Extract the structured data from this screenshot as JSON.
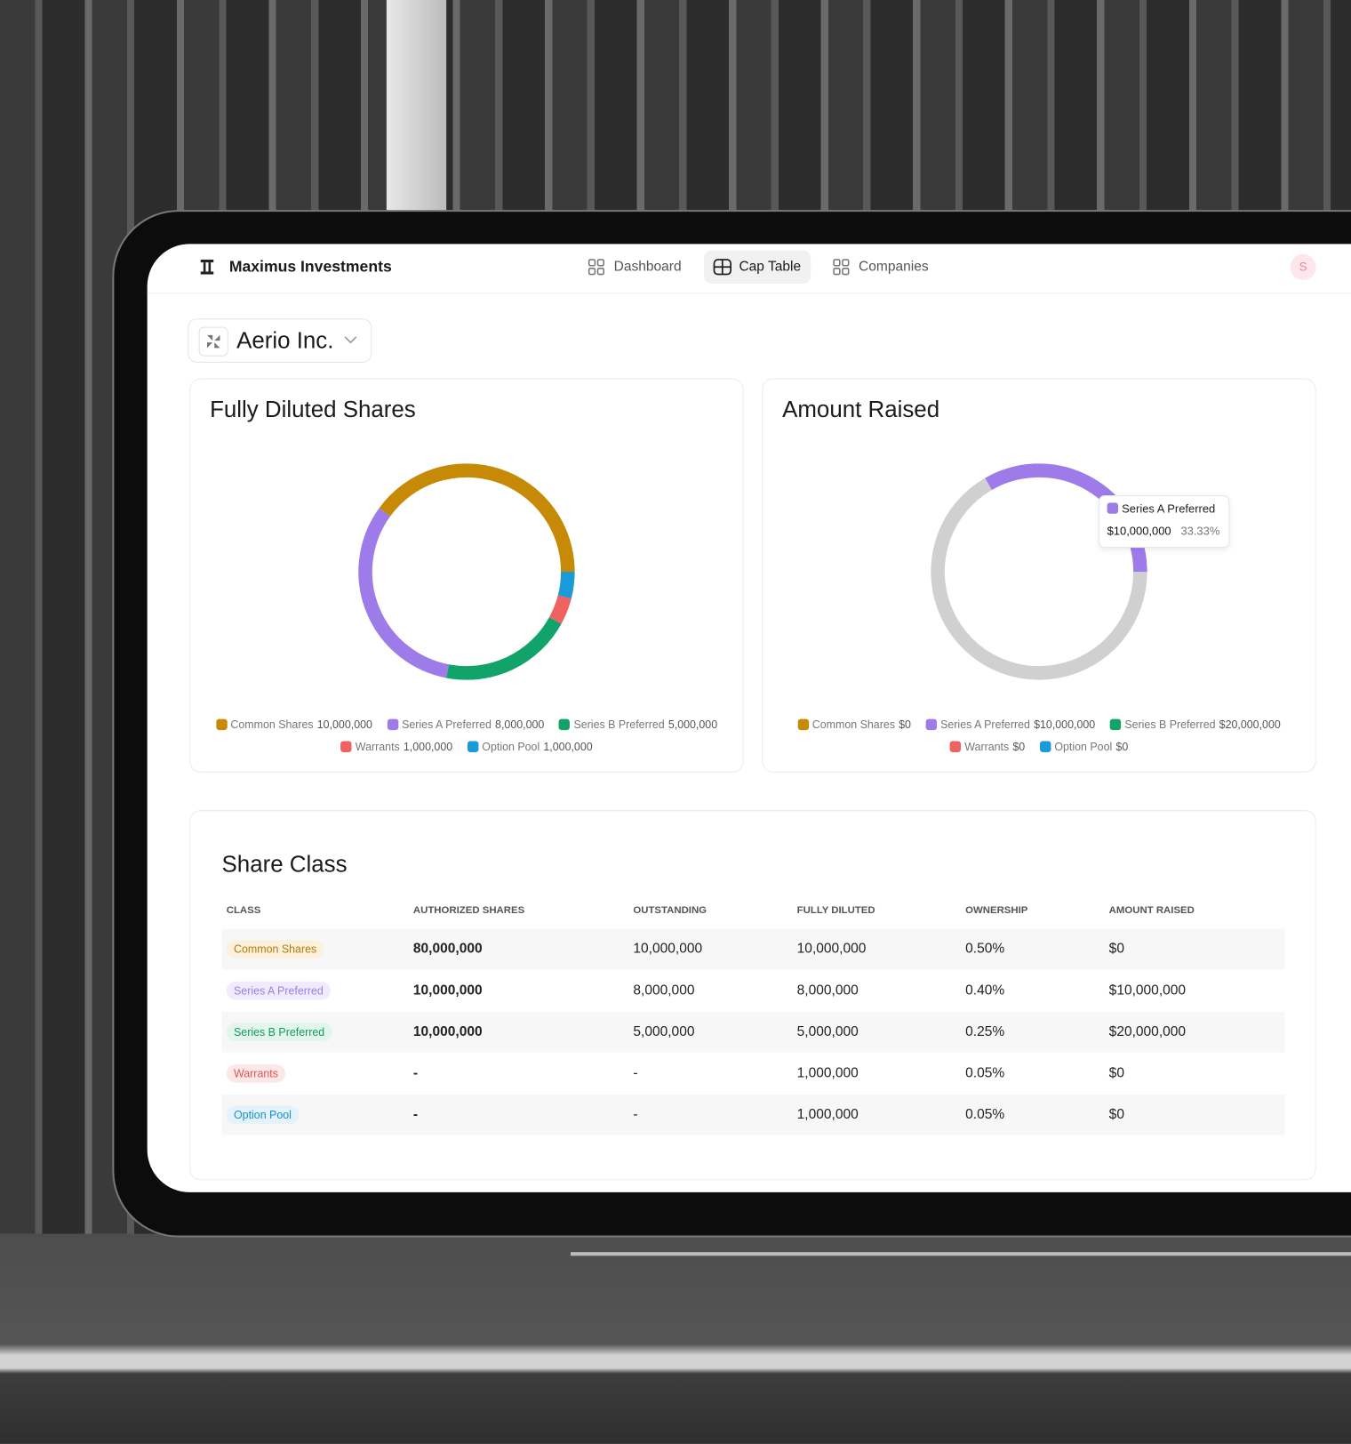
{
  "header": {
    "brand": "Maximus Investments",
    "nav": [
      "Dashboard",
      "Cap Table",
      "Companies"
    ],
    "avatar": "S"
  },
  "company": "Aerio Inc.",
  "chart_data": [
    {
      "type": "donut",
      "title": "Fully Diluted Shares",
      "categories": [
        "Common Shares",
        "Series A Preferred",
        "Series B Preferred",
        "Warrants",
        "Option Pool"
      ],
      "values": [
        10000000,
        8000000,
        5000000,
        1000000,
        1000000
      ],
      "value_labels": [
        "10,000,000",
        "8,000,000",
        "5,000,000",
        "1,000,000",
        "1,000,000"
      ],
      "colors": [
        "#c68a06",
        "#9d7ce9",
        "#12a36b",
        "#ef6262",
        "#1a9ad6"
      ]
    },
    {
      "type": "donut",
      "title": "Amount Raised",
      "categories": [
        "Common Shares",
        "Series A Preferred",
        "Series B Preferred",
        "Warrants",
        "Option Pool"
      ],
      "values": [
        0,
        10000000,
        20000000,
        0,
        0
      ],
      "value_labels": [
        "$0",
        "$10,000,000",
        "$20,000,000",
        "$0",
        "$0"
      ],
      "colors": [
        "#c68a06",
        "#9d7ce9",
        "#12a36b",
        "#ef6262",
        "#1a9ad6"
      ],
      "active_index": 1,
      "inactive_color": "#d0d0d0",
      "tooltip": {
        "name": "Series A Preferred",
        "value": "$10,000,000",
        "percent": "33.33%"
      }
    }
  ],
  "table": {
    "title": "Share Class",
    "columns": [
      "CLASS",
      "AUTHORIZED SHARES",
      "OUTSTANDING",
      "FULLY DILUTED",
      "OWNERSHIP",
      "AMOUNT RAISED"
    ],
    "rows": [
      [
        "Common Shares",
        "80,000,000",
        "10,000,000",
        "10,000,000",
        "0.50%",
        "$0"
      ],
      [
        "Series A Preferred",
        "10,000,000",
        "8,000,000",
        "8,000,000",
        "0.40%",
        "$10,000,000"
      ],
      [
        "Series B Preferred",
        "10,000,000",
        "5,000,000",
        "5,000,000",
        "0.25%",
        "$20,000,000"
      ],
      [
        "Warrants",
        "-",
        "-",
        "1,000,000",
        "0.05%",
        "$0"
      ],
      [
        "Option Pool",
        "-",
        "-",
        "1,000,000",
        "0.05%",
        "$0"
      ]
    ]
  }
}
